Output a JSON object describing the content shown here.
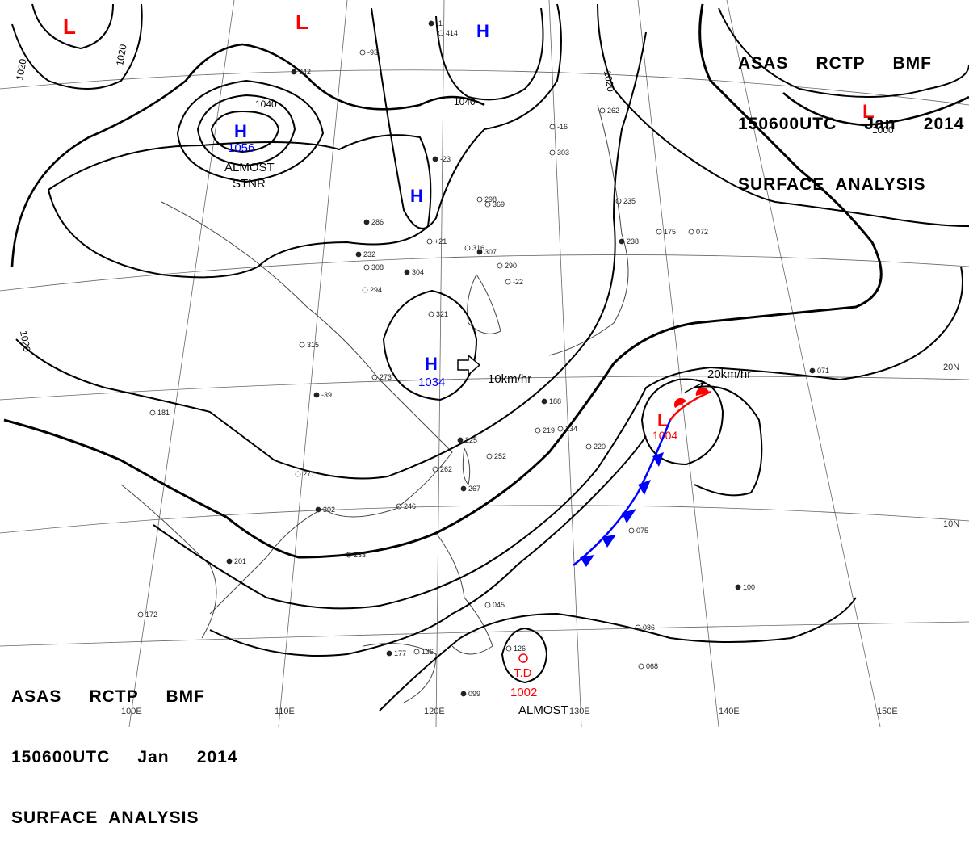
{
  "header": {
    "line1": "ASAS     RCTP     BMF",
    "line2": "150600UTC     Jan     2014",
    "line3": "SURFACE  ANALYSIS"
  },
  "footer": {
    "line1": "ASAS     RCTP     BMF",
    "line2": "150600UTC     Jan     2014",
    "line3": "SURFACE  ANALYSIS"
  },
  "colors": {
    "high": "#0000ff",
    "low": "#ff0000",
    "isobar": "#000000",
    "grid": "#555555",
    "coast": "#444444"
  },
  "isobar_labels": [
    "1020",
    "1020",
    "1040",
    "1040",
    "1020",
    "1000",
    "1020"
  ],
  "pressure_centers": [
    {
      "type": "L",
      "value": ""
    },
    {
      "type": "L",
      "value": ""
    },
    {
      "type": "H",
      "value": ""
    },
    {
      "type": "H",
      "value": "1056"
    },
    {
      "type": "H",
      "value": ""
    },
    {
      "type": "H",
      "value": "1034"
    },
    {
      "type": "L",
      "value": "1004"
    },
    {
      "type": "L",
      "value": ""
    }
  ],
  "annotations": {
    "almost_stnr_1": "ALMOST",
    "almost_stnr_2": "STNR",
    "almost_bottom": "ALMOST",
    "high_motion": "10km/hr",
    "low_motion": "20km/hr",
    "td_label": "T.D",
    "td_pressure": "1002"
  },
  "lat_labels": [
    "20N",
    "10N"
  ],
  "lon_labels": [
    "100E",
    "110E",
    "120E",
    "130E",
    "140E",
    "150E"
  ],
  "station_samples": [
    "-1",
    "414",
    "-93",
    "342",
    "-16",
    "303",
    "-23",
    "298",
    "369",
    "286",
    "+21",
    "316",
    "307",
    "290",
    "-22",
    "304",
    "321",
    "294",
    "232",
    "308",
    "315",
    "-39",
    "273",
    "277",
    "302",
    "246",
    "233",
    "201",
    "181",
    "172",
    "177",
    "136",
    "126",
    "099",
    "045",
    "075",
    "100",
    "086",
    "068",
    "071",
    "072",
    "175",
    "238",
    "235",
    "262",
    "225",
    "252",
    "262",
    "267",
    "234",
    "219",
    "188",
    "220",
    "227",
    "180"
  ]
}
